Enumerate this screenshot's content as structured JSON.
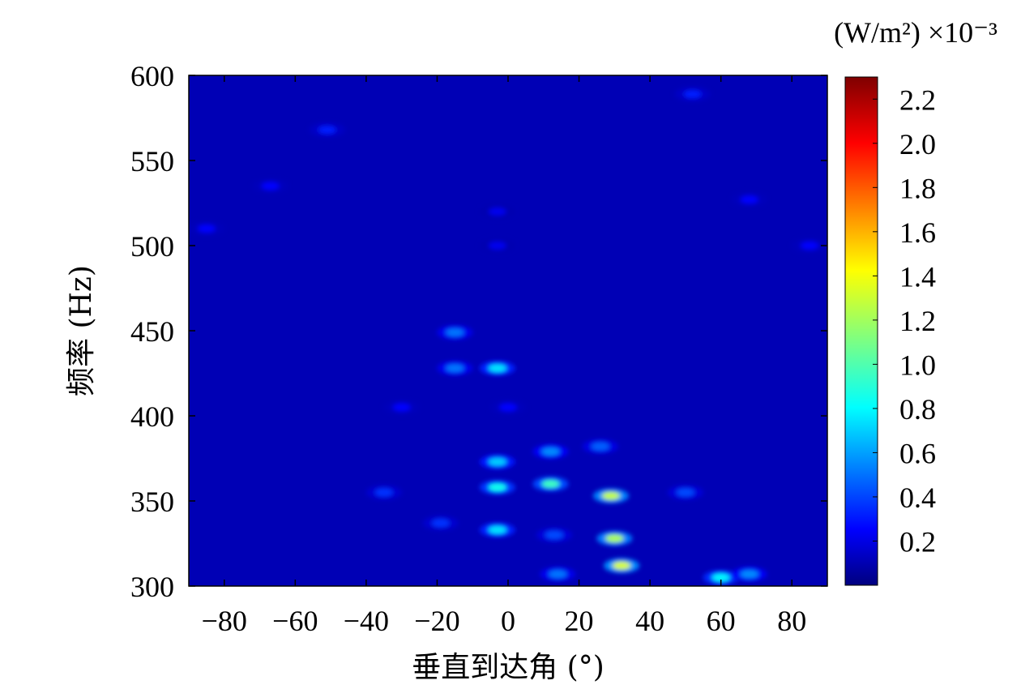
{
  "chart_data": {
    "type": "heatmap",
    "xlabel": "垂直到达角 (°)",
    "ylabel": "频率 (Hz)",
    "colorbar_label": "(W/m²) ×10⁻³",
    "xlim": [
      -90,
      90
    ],
    "ylim": [
      300,
      600
    ],
    "xticks": [
      -80,
      -60,
      -40,
      -20,
      0,
      20,
      40,
      60,
      80
    ],
    "xtick_labels": [
      "−80",
      "−60",
      "−40",
      "−20",
      "0",
      "20",
      "40",
      "60",
      "80"
    ],
    "yticks": [
      300,
      350,
      400,
      450,
      500,
      550,
      600
    ],
    "ytick_labels": [
      "300",
      "350",
      "400",
      "450",
      "500",
      "550",
      "600"
    ],
    "colorbar_range": [
      0,
      2.3
    ],
    "colorbar_ticks": [
      0.2,
      0.4,
      0.6,
      0.8,
      1.0,
      1.2,
      1.4,
      1.6,
      1.8,
      2.0,
      2.2
    ],
    "colorbar_tick_labels": [
      "0.2",
      "0.4",
      "0.6",
      "0.8",
      "1.0",
      "1.2",
      "1.4",
      "1.6",
      "1.8",
      "2.0",
      "2.2"
    ],
    "colormap": "jet",
    "background_value": 0.12,
    "hotspots": [
      {
        "x": 32,
        "y": 312,
        "value": 1.35
      },
      {
        "x": 30,
        "y": 328,
        "value": 1.25
      },
      {
        "x": 29,
        "y": 353,
        "value": 1.3
      },
      {
        "x": 12,
        "y": 360,
        "value": 1.0
      },
      {
        "x": 12,
        "y": 379,
        "value": 0.6
      },
      {
        "x": -3,
        "y": 358,
        "value": 0.9
      },
      {
        "x": -3,
        "y": 373,
        "value": 0.75
      },
      {
        "x": -3,
        "y": 333,
        "value": 0.8
      },
      {
        "x": -3,
        "y": 428,
        "value": 0.8
      },
      {
        "x": -15,
        "y": 449,
        "value": 0.55
      },
      {
        "x": -15,
        "y": 428,
        "value": 0.55
      },
      {
        "x": 60,
        "y": 305,
        "value": 0.85
      },
      {
        "x": 68,
        "y": 307,
        "value": 0.6
      },
      {
        "x": 14,
        "y": 307,
        "value": 0.55
      },
      {
        "x": 50,
        "y": 355,
        "value": 0.45
      },
      {
        "x": 26,
        "y": 382,
        "value": 0.5
      },
      {
        "x": -19,
        "y": 337,
        "value": 0.4
      },
      {
        "x": -35,
        "y": 355,
        "value": 0.4
      },
      {
        "x": 52,
        "y": 589,
        "value": 0.35
      },
      {
        "x": -51,
        "y": 568,
        "value": 0.35
      },
      {
        "x": -85,
        "y": 510,
        "value": 0.3
      },
      {
        "x": 85,
        "y": 500,
        "value": 0.3
      },
      {
        "x": -67,
        "y": 535,
        "value": 0.3
      },
      {
        "x": 68,
        "y": 527,
        "value": 0.3
      },
      {
        "x": 13,
        "y": 330,
        "value": 0.45
      },
      {
        "x": -3,
        "y": 520,
        "value": 0.25
      },
      {
        "x": -3,
        "y": 500,
        "value": 0.25
      },
      {
        "x": -30,
        "y": 405,
        "value": 0.3
      },
      {
        "x": 0,
        "y": 405,
        "value": 0.3
      }
    ]
  }
}
